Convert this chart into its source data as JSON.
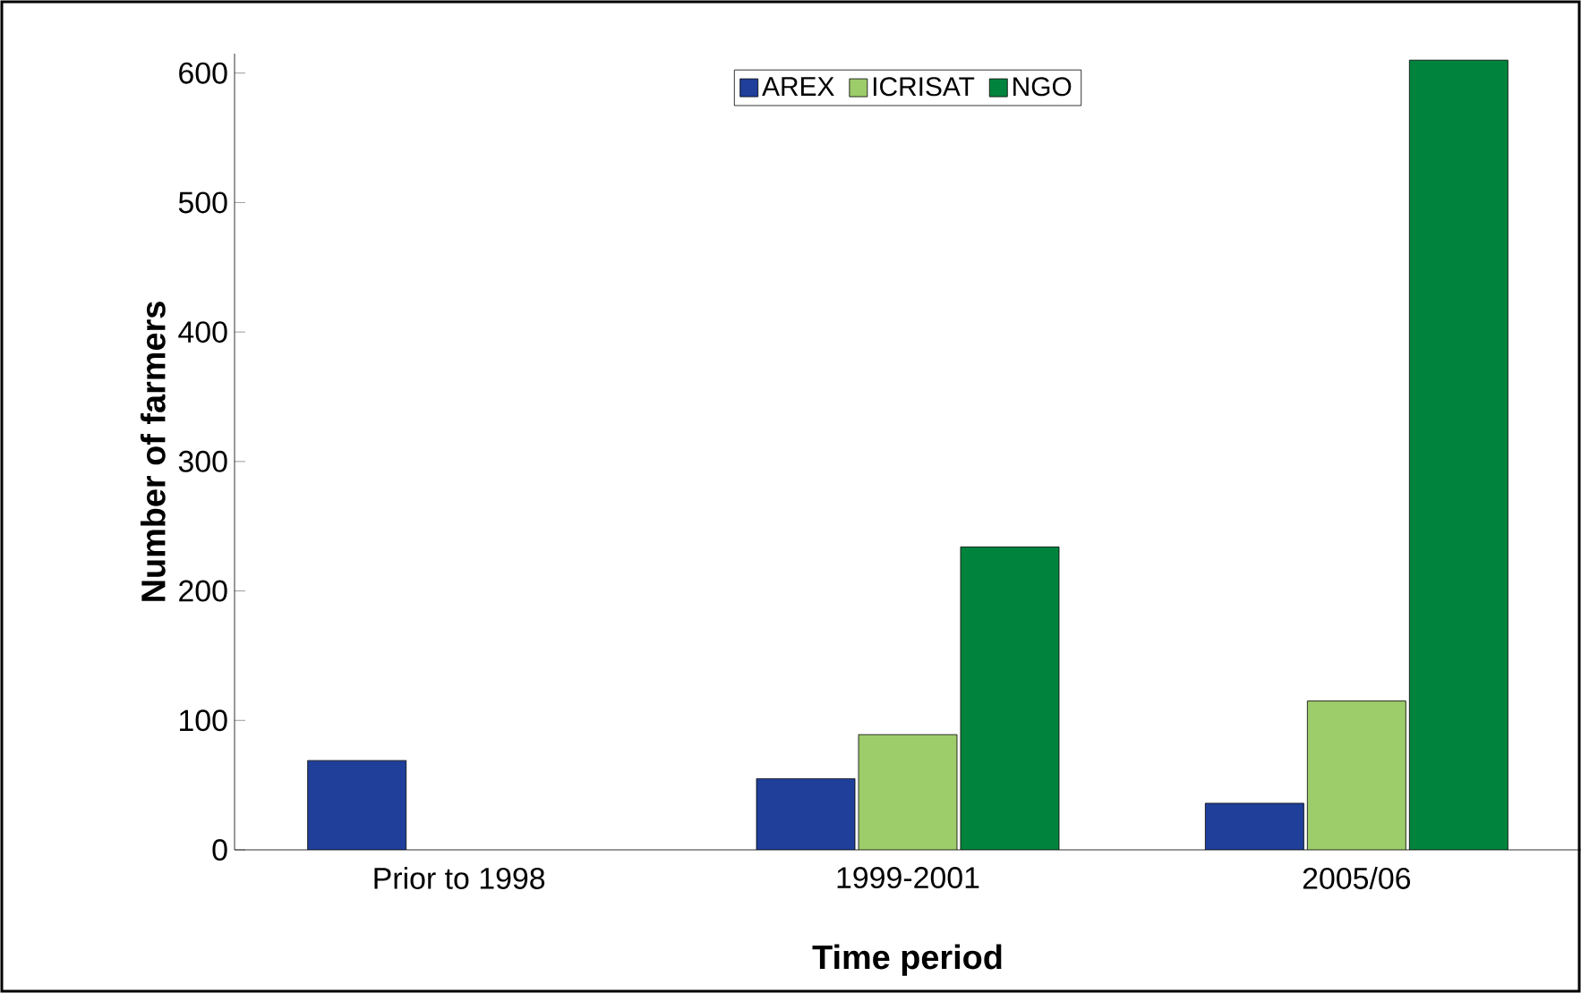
{
  "chart_data": {
    "type": "bar",
    "xlabel": "Time period",
    "ylabel": "Number of farmers",
    "categories": [
      "Prior to 1998",
      "1999-2001",
      "2005/06"
    ],
    "series": [
      {
        "name": "AREX",
        "color": "#1f3f9a",
        "values": [
          69,
          55,
          36
        ]
      },
      {
        "name": "ICRISAT",
        "color": "#9dcc6a",
        "values": [
          null,
          89,
          115
        ]
      },
      {
        "name": "NGO",
        "color": "#00843d",
        "values": [
          null,
          234,
          610
        ]
      }
    ],
    "ylim": [
      0,
      615
    ],
    "yticks": [
      0,
      100,
      200,
      300,
      400,
      500,
      600
    ],
    "grid": false,
    "legend": "top"
  }
}
